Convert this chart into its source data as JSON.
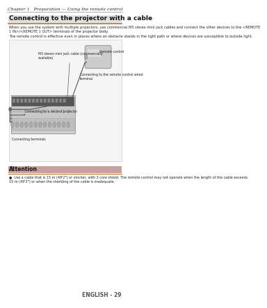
{
  "page_header": "Chapter 1   Preparation — Using the remote control",
  "page_number": "ENGLISH - 29",
  "section_title": "Connecting to the projector with a cable",
  "body_text_1": "When you use the system with multiple projectors, use commercial M3 stereo mini jack cables and connect the other devices to the <REMOTE\n1 IN>/<REMOTE 1 OUT> terminals of the projector body.",
  "body_text_2": "The remote control is effective even in places where an obstacle stands in the light path or where devices are susceptible to outside light.",
  "label_cable": "M3 stereo mini jack cable (commercially\navailable)",
  "label_second": "Connecting to a second projector",
  "label_remote": "Remote control",
  "label_wired": "Connecting to the remote control wired\nterminal",
  "label_terminals": "Connecting terminals",
  "attention_title": "Attention",
  "attention_text": "Use a cable that is 15 m (49'2\") or shorter, with 2 core shield. The remote control may not operate when the length of the cable exceeds\n15 m (49'2\") or when the shielding of the cable is inadequate.",
  "bg_color": "#ffffff",
  "text_color": "#333333",
  "header_line_color": "#888888",
  "attention_bg_color": "#c8a0a0"
}
